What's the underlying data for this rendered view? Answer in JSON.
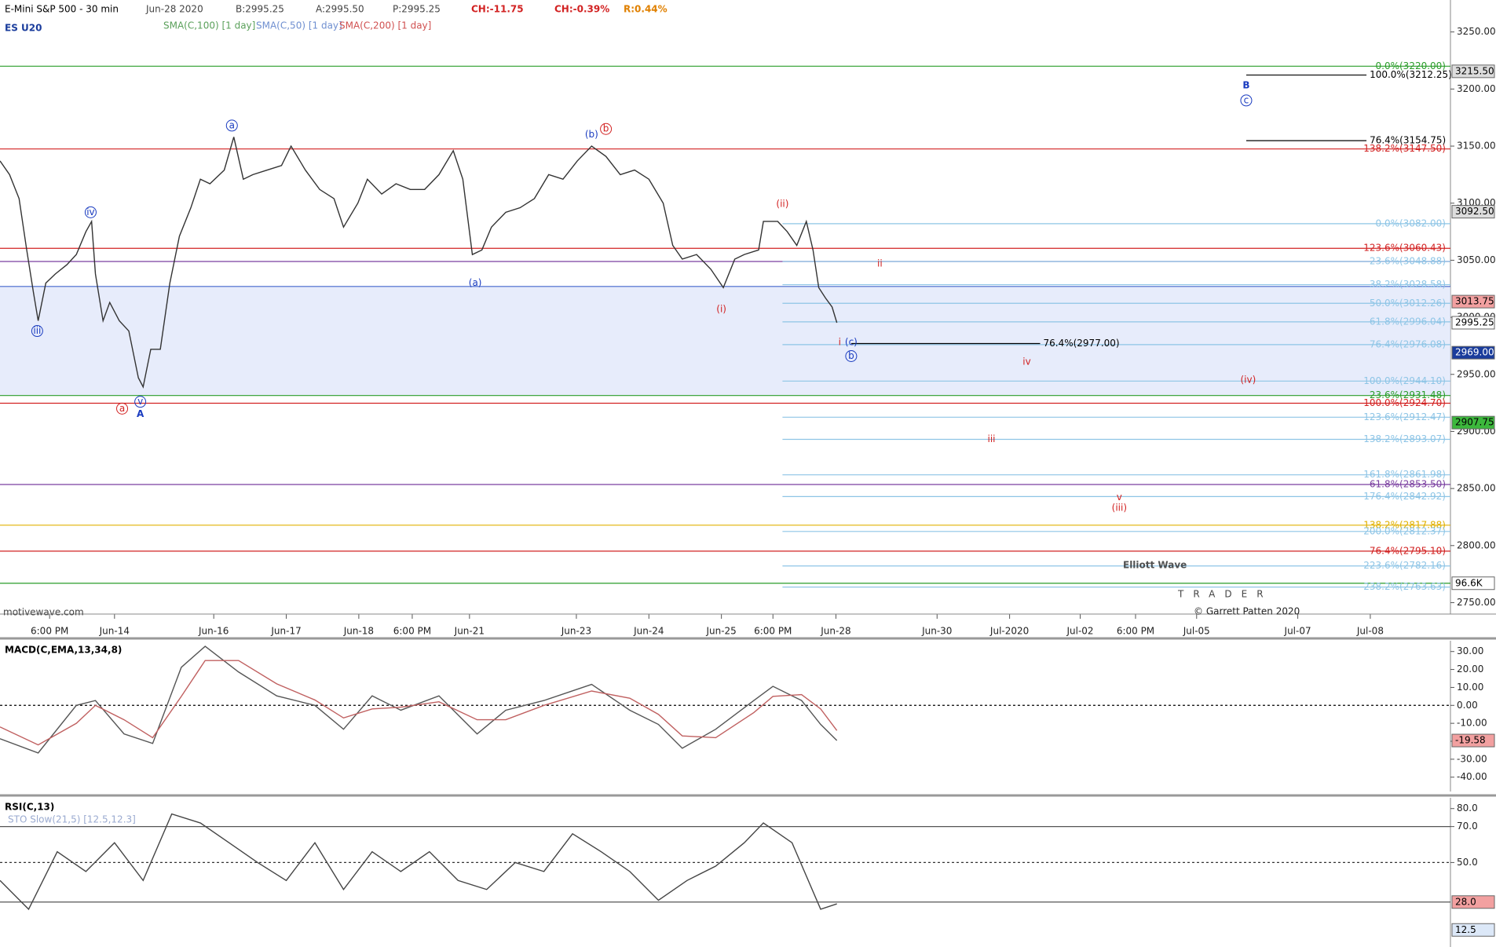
{
  "chart_data": [
    {
      "type": "line",
      "title": "E-Mini S&P 500 - 30 min",
      "symbol": "ES U20",
      "info": [
        "Jun-28 2020",
        "B:2995.25",
        "A:2995.50",
        "P:2995.25",
        "CH:-11.75",
        "CH:-0.39%",
        "R:0.44%"
      ],
      "studies": [
        {
          "name": "SMA(C,100) [1 day]",
          "color": "#5aa05a"
        },
        {
          "name": "SMA(C,50) [1 day]",
          "color": "#6f8fd0"
        },
        {
          "name": "SMA(C,200) [1 day]",
          "color": "#d05050"
        }
      ],
      "credit": "motivewave.com",
      "watermark": "Elliott Wave",
      "watermark_sub": "TRADER",
      "copyright": "© Garrett Patten 2020",
      "xlim": [
        0,
        760
      ],
      "xticks": [
        {
          "value": 26,
          "label": "6:00 PM"
        },
        {
          "value": 60,
          "label": "Jun-14"
        },
        {
          "value": 112,
          "label": "Jun-16"
        },
        {
          "value": 150,
          "label": "Jun-17"
        },
        {
          "value": 188,
          "label": "Jun-18"
        },
        {
          "value": 216,
          "label": "6:00 PM"
        },
        {
          "value": 246,
          "label": "Jun-21"
        },
        {
          "value": 302,
          "label": "Jun-23"
        },
        {
          "value": 340,
          "label": "Jun-24"
        },
        {
          "value": 378,
          "label": "Jun-25"
        },
        {
          "value": 405,
          "label": "6:00 PM"
        },
        {
          "value": 438,
          "label": "Jun-28"
        },
        {
          "value": 491,
          "label": "Jun-30"
        },
        {
          "value": 529,
          "label": "Jul-2020"
        },
        {
          "value": 566,
          "label": "Jul-02"
        },
        {
          "value": 595,
          "label": "6:00 PM"
        },
        {
          "value": 627,
          "label": "Jul-05"
        },
        {
          "value": 680,
          "label": "Jul-07"
        },
        {
          "value": 718,
          "label": "Jul-08"
        }
      ],
      "ylim": [
        2740,
        3278
      ],
      "yticks": [
        {
          "value": 3250,
          "label": "3250.00"
        },
        {
          "value": 3200,
          "label": "3200.00"
        },
        {
          "value": 3150,
          "label": "3150.00"
        },
        {
          "value": 3100,
          "label": "3100.00"
        },
        {
          "value": 3050,
          "label": "3050.00"
        },
        {
          "value": 3000,
          "label": "3000.00"
        },
        {
          "value": 2950,
          "label": "2950.00"
        },
        {
          "value": 2900,
          "label": "2900.00"
        },
        {
          "value": 2850,
          "label": "2850.00"
        },
        {
          "value": 2800,
          "label": "2800.00"
        },
        {
          "value": 2750,
          "label": "2750.00"
        }
      ],
      "x": [
        0,
        5,
        10,
        14,
        17.5,
        20,
        24,
        29,
        35,
        40,
        45,
        48,
        50,
        54,
        57.5,
        62.5,
        67.5,
        72.5,
        75,
        79,
        84,
        89,
        94,
        100,
        105,
        110,
        117.5,
        122.5,
        127.5,
        132.5,
        140,
        147.5,
        152.5,
        160,
        167.5,
        175,
        180,
        187.5,
        192.5,
        200,
        207.5,
        215,
        222.5,
        230,
        237.5,
        242.5,
        247.5,
        252.5,
        257.5,
        265,
        272.5,
        280,
        287.5,
        295,
        302.5,
        310,
        317.5,
        325,
        332.5,
        340,
        347.5,
        352.5,
        357.5,
        365,
        372.5,
        379,
        385,
        390,
        397.5,
        400,
        407.5,
        412.5,
        417.5,
        422.5,
        426,
        429,
        432.5,
        436,
        438.5
      ],
      "series": [
        {
          "name": "ES U20",
          "color": "#333333",
          "values": [
            3137,
            3125,
            3104,
            3059,
            3022,
            2997,
            3030,
            3038,
            3046,
            3055,
            3075,
            3084,
            3038,
            2997,
            3013,
            2997,
            2988,
            2947,
            2939,
            2972,
            2972,
            3030,
            3071,
            3096,
            3121,
            3117,
            3129,
            3158,
            3121,
            3125,
            3129,
            3133,
            3150,
            3129,
            3112,
            3104,
            3079,
            3100,
            3121,
            3108,
            3117,
            3112,
            3112,
            3125,
            3146,
            3121,
            3055,
            3059,
            3079,
            3092,
            3096,
            3104,
            3125,
            3121,
            3137,
            3150,
            3141,
            3125,
            3129,
            3121,
            3100,
            3063,
            3051,
            3055,
            3042,
            3026,
            3051,
            3055,
            3059,
            3084,
            3084,
            3075,
            3063,
            3084,
            3059,
            3026,
            3017,
            3009,
            2995.25
          ]
        }
      ],
      "levels": [
        {
          "value": 3220,
          "color": "#2a9d2a",
          "label": "0.0%(3220.00)"
        },
        {
          "value": 3147.5,
          "color": "#d22222",
          "label": "138.2%(3147.50)"
        },
        {
          "value": 3060.43,
          "color": "#d22222",
          "label": "123.6%(3060.43)"
        },
        {
          "value": 3048.88,
          "color": "#7a3fa0"
        },
        {
          "value": 3027,
          "color": "#4466cc",
          "shade_to": 2931.48
        },
        {
          "value": 2931.48,
          "color": "#2a9d2a",
          "label": "23.6%(2931.48)"
        },
        {
          "value": 2924.7,
          "color": "#d22222",
          "label": "100.0%(2924.70)"
        },
        {
          "value": 2853.5,
          "color": "#7a3fa0",
          "label": "61.8%(2853.50)"
        },
        {
          "value": 2817.88,
          "color": "#e0b000",
          "label": "138.2%(2817.88)"
        },
        {
          "value": 2795.1,
          "color": "#d22222",
          "label": "76.4%(2795.10)"
        },
        {
          "value": 2767,
          "color": "#2a9d2a"
        },
        {
          "value": 3082,
          "x0": 410,
          "color": "#8ec5e6",
          "label": "0.0%(3082.00)"
        },
        {
          "value": 3048.88,
          "x0": 410,
          "color": "#8ec5e6",
          "label": "23.6%(3048.88)"
        },
        {
          "value": 3028.58,
          "x0": 410,
          "color": "#8ec5e6",
          "label": "38.2%(3028.58)"
        },
        {
          "value": 3012.26,
          "x0": 410,
          "color": "#8ec5e6",
          "label": "50.0%(3012.26)"
        },
        {
          "value": 2996.04,
          "x0": 410,
          "color": "#8ec5e6",
          "label": "61.8%(2996.04)"
        },
        {
          "value": 2976.08,
          "x0": 410,
          "color": "#8ec5e6",
          "label": "76.4%(2976.08)"
        },
        {
          "value": 2944.1,
          "x0": 410,
          "color": "#8ec5e6",
          "label": "100.0%(2944.10)"
        },
        {
          "value": 2912.47,
          "x0": 410,
          "color": "#8ec5e6",
          "label": "123.6%(2912.47)"
        },
        {
          "value": 2893.07,
          "x0": 410,
          "color": "#8ec5e6",
          "label": "138.2%(2893.07)"
        },
        {
          "value": 2861.98,
          "x0": 410,
          "color": "#8ec5e6",
          "label": "161.8%(2861.98)"
        },
        {
          "value": 2842.92,
          "x0": 410,
          "color": "#8ec5e6",
          "label": "176.4%(2842.92)"
        },
        {
          "value": 2812.37,
          "x0": 410,
          "color": "#8ec5e6",
          "label": "200.0%(2812.37)"
        },
        {
          "value": 2782.16,
          "x0": 410,
          "color": "#8ec5e6",
          "label": "223.6%(2782.16)"
        },
        {
          "value": 2763.63,
          "x0": 410,
          "color": "#8ec5e6",
          "label": "238.2%(2763.63)"
        },
        {
          "value": 3212.25,
          "x0": 653,
          "x1": 716,
          "color": "#000000",
          "label": "100.0%(3212.25)"
        },
        {
          "value": 3154.75,
          "x0": 653,
          "x1": 716,
          "color": "#000000",
          "label": "76.4%(3154.75)"
        },
        {
          "value": 2977,
          "x0": 446,
          "x1": 545,
          "color": "#000000",
          "label": "76.4%(2977.00)"
        }
      ],
      "price_tags": [
        {
          "value": 3215.5,
          "label": "3215.50",
          "bg": "#dddddd",
          "fg": "#000000"
        },
        {
          "value": 3092.5,
          "label": "3092.50",
          "bg": "#dddddd",
          "fg": "#000000"
        },
        {
          "value": 3013.75,
          "label": "3013.75",
          "bg": "#f2a0a0",
          "fg": "#000000"
        },
        {
          "value": 2995.25,
          "label": "2995.25",
          "bg": "#ffffff",
          "fg": "#000000"
        },
        {
          "value": 2969,
          "label": "2969.00",
          "bg": "#1a3c9c",
          "fg": "#ffffff"
        },
        {
          "value": 2907.75,
          "label": "2907.75",
          "bg": "#3cb83c",
          "fg": "#000000"
        },
        {
          "value": 2767,
          "label": "96.6K",
          "bg": "#ffffff",
          "fg": "#000000"
        }
      ],
      "wave_labels": [
        {
          "text": "a",
          "x": 121.5,
          "y": 3168,
          "color": "#1a3cc0",
          "circled": true
        },
        {
          "text": "iv",
          "x": 47.5,
          "y": 3092,
          "color": "#1a3cc0",
          "circled": true
        },
        {
          "text": "iii",
          "x": 19.5,
          "y": 2988,
          "color": "#1a3cc0",
          "circled": true
        },
        {
          "text": "a",
          "x": 64,
          "y": 2920,
          "color": "#d22222",
          "circled": true
        },
        {
          "text": "v",
          "x": 73.5,
          "y": 2926,
          "color": "#1a3cc0",
          "circled": true
        },
        {
          "text": "A",
          "x": 73.5,
          "y": 2915,
          "color": "#1a3cc0",
          "bold": true
        },
        {
          "text": "(a)",
          "x": 249,
          "y": 3030,
          "color": "#1a3cc0"
        },
        {
          "text": "(b)",
          "x": 310,
          "y": 3160,
          "color": "#1a3cc0"
        },
        {
          "text": "b",
          "x": 317.5,
          "y": 3165,
          "color": "#d22222",
          "circled": true
        },
        {
          "text": "(ii)",
          "x": 410,
          "y": 3099,
          "color": "#d22222"
        },
        {
          "text": "(i)",
          "x": 378,
          "y": 3007,
          "color": "#d22222"
        },
        {
          "text": "ii",
          "x": 461,
          "y": 3047,
          "color": "#d22222"
        },
        {
          "text": "i",
          "x": 440,
          "y": 2978,
          "color": "#d22222"
        },
        {
          "text": "(c)",
          "x": 446,
          "y": 2978,
          "color": "#1a3cc0"
        },
        {
          "text": "b",
          "x": 446,
          "y": 2966,
          "color": "#1a3cc0",
          "circled": true
        },
        {
          "text": "iv",
          "x": 538,
          "y": 2961,
          "color": "#d22222"
        },
        {
          "text": "(iv)",
          "x": 654,
          "y": 2945,
          "color": "#d22222"
        },
        {
          "text": "iii",
          "x": 519.5,
          "y": 2893,
          "color": "#d22222"
        },
        {
          "text": "v",
          "x": 586.5,
          "y": 2842,
          "color": "#d22222"
        },
        {
          "text": "(iii)",
          "x": 586.5,
          "y": 2833,
          "color": "#d22222"
        },
        {
          "text": "B",
          "x": 653,
          "y": 3203,
          "color": "#1a3cc0",
          "bold": true
        },
        {
          "text": "c",
          "x": 653,
          "y": 3190,
          "color": "#1a3cc0",
          "circled": true
        }
      ]
    },
    {
      "type": "line",
      "title": "MACD(C,EMA,13,34,8)",
      "xlim": [
        0,
        760
      ],
      "ylim": [
        -48,
        36
      ],
      "yticks": [
        {
          "value": 30,
          "label": "30.00"
        },
        {
          "value": 20,
          "label": "20.00"
        },
        {
          "value": 10,
          "label": "10.00"
        },
        {
          "value": 0,
          "label": "0.00"
        },
        {
          "value": -10,
          "label": "-10.00"
        },
        {
          "value": -20,
          "label": "-20.00"
        },
        {
          "value": -30,
          "label": "-30.00"
        },
        {
          "value": -40,
          "label": "-40.00"
        }
      ],
      "x": [
        0,
        20,
        40,
        50,
        65,
        80,
        95,
        107.5,
        125,
        145,
        165,
        180,
        195,
        210,
        230,
        250,
        265,
        285,
        310,
        330,
        345,
        357.5,
        375,
        395,
        405,
        420,
        430,
        438.5
      ],
      "series": [
        {
          "color": "#555555",
          "values": [
            -18.6,
            -26.5,
            0,
            2.7,
            -15.9,
            -21.2,
            21.2,
            32.9,
            18.6,
            5.3,
            0,
            -13.3,
            5.3,
            -2.7,
            5.3,
            -15.9,
            -2.7,
            2.7,
            11.7,
            -2.7,
            -10.6,
            -23.9,
            -13.3,
            2.7,
            10.6,
            2.7,
            -10.6,
            -19.58
          ]
        },
        {
          "color": "#c06060",
          "values": [
            -12,
            -22,
            -10,
            0,
            -8,
            -18,
            5,
            25,
            25,
            12,
            3,
            -7,
            -2,
            -1,
            2,
            -8,
            -8,
            0,
            8,
            4,
            -5,
            -17,
            -18,
            -4,
            5,
            6,
            -2,
            -14
          ]
        }
      ],
      "levels": [
        {
          "value": 0,
          "color": "#000000",
          "dash": true
        }
      ],
      "price_tags": [
        {
          "value": -19.58,
          "label": "-19.58",
          "bg": "#f2a0a0",
          "fg": "#000000"
        }
      ]
    },
    {
      "type": "line",
      "title": "RSI(C,13)",
      "subtitle": "STO Slow(21,5) [12.5,12.3]",
      "xlim": [
        0,
        760
      ],
      "ylim": [
        3,
        86
      ],
      "yticks": [
        {
          "value": 80,
          "label": "80.0"
        },
        {
          "value": 70,
          "label": "70.0"
        },
        {
          "value": 50,
          "label": "50.0"
        }
      ],
      "x": [
        0,
        15,
        30,
        45,
        60,
        75,
        90,
        105,
        120,
        135,
        150,
        165,
        180,
        195,
        210,
        225,
        240,
        255,
        270,
        285,
        300,
        315,
        330,
        345,
        360,
        375,
        390,
        400,
        415,
        430,
        438.5
      ],
      "series": [
        {
          "color": "#444444",
          "values": [
            40,
            24,
            56,
            45,
            61,
            40,
            77,
            72,
            61,
            50,
            40,
            61,
            35,
            56,
            45,
            56,
            40,
            35,
            50,
            45,
            66,
            56,
            45,
            29,
            40,
            48,
            61,
            72,
            61,
            24,
            27
          ]
        }
      ],
      "levels": [
        {
          "value": 70,
          "color": "#555555"
        },
        {
          "value": 50,
          "color": "#333333",
          "dash": true
        },
        {
          "value": 28,
          "color": "#555555"
        }
      ],
      "price_tags": [
        {
          "value": 28,
          "label": "28.0",
          "bg": "#f2a0a0",
          "fg": "#000000"
        },
        {
          "value": 12.5,
          "label": "12.5",
          "bg": "#dce8f8",
          "fg": "#000000"
        }
      ]
    }
  ]
}
